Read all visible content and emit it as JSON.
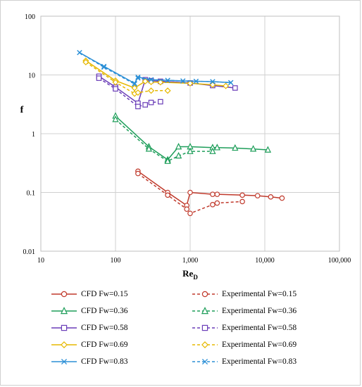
{
  "chart_data": {
    "type": "line",
    "xscale": "log",
    "yscale": "log",
    "xlabel": "Re",
    "xlabel_sub": "D",
    "ylabel": "f",
    "xlim": [
      10,
      100000
    ],
    "ylim": [
      0.01,
      100
    ],
    "x_ticks": [
      "10",
      "100",
      "1,000",
      "10,000",
      "100,000"
    ],
    "y_ticks": [
      "0.01",
      "0.1",
      "1",
      "10",
      "100"
    ],
    "grid": true,
    "legend_position": "bottom",
    "series": [
      {
        "name": "CFD Fw=0.15",
        "color": "#c0392b",
        "dash": false,
        "marker": "circle",
        "x": [
          200,
          500,
          900,
          1000,
          2000,
          2300,
          5000,
          8000,
          12000,
          17000
        ],
        "y": [
          0.23,
          0.1,
          0.06,
          0.1,
          0.093,
          0.093,
          0.09,
          0.088,
          0.084,
          0.08
        ]
      },
      {
        "name": "Experimental Fw=0.15",
        "color": "#c0392b",
        "dash": true,
        "marker": "circle",
        "x": [
          200,
          500,
          900,
          1000,
          2000,
          2300,
          5000
        ],
        "y": [
          0.21,
          0.09,
          0.052,
          0.044,
          0.062,
          0.066,
          0.07
        ]
      },
      {
        "name": "CFD Fw=0.36",
        "color": "#1e9e5a",
        "dash": false,
        "marker": "triangle",
        "x": [
          100,
          280,
          500,
          700,
          1000,
          2000,
          2300,
          4000,
          7000,
          11000
        ],
        "y": [
          2.0,
          0.6,
          0.36,
          0.6,
          0.6,
          0.58,
          0.58,
          0.57,
          0.55,
          0.53
        ]
      },
      {
        "name": "Experimental Fw=0.36",
        "color": "#1e9e5a",
        "dash": true,
        "marker": "triangle",
        "x": [
          100,
          280,
          500,
          700,
          1000,
          2000
        ],
        "y": [
          1.75,
          0.55,
          0.34,
          0.42,
          0.5,
          0.5
        ]
      },
      {
        "name": "CFD Fw=0.58",
        "color": "#6a3db8",
        "dash": false,
        "marker": "square",
        "x": [
          60,
          100,
          200,
          250,
          300,
          400,
          1000,
          2000,
          4000
        ],
        "y": [
          9.5,
          6.2,
          3.3,
          8.3,
          8.0,
          7.8,
          7.3,
          6.6,
          6.0
        ]
      },
      {
        "name": "Experimental Fw=0.58",
        "color": "#6a3db8",
        "dash": true,
        "marker": "square",
        "x": [
          60,
          100,
          200,
          250,
          300,
          400
        ],
        "y": [
          8.8,
          5.8,
          2.9,
          3.1,
          3.4,
          3.5
        ]
      },
      {
        "name": "CFD Fw=0.69",
        "color": "#e6b800",
        "dash": false,
        "marker": "diamond",
        "x": [
          40,
          100,
          180,
          250,
          300,
          400,
          1000,
          2000,
          3000
        ],
        "y": [
          17.5,
          8.0,
          6.0,
          7.8,
          7.6,
          7.5,
          7.2,
          6.8,
          6.5
        ]
      },
      {
        "name": "Experimental Fw=0.69",
        "color": "#e6b800",
        "dash": true,
        "marker": "diamond",
        "x": [
          40,
          100,
          180,
          200,
          300,
          500
        ],
        "y": [
          16.5,
          7.5,
          4.8,
          5.0,
          5.4,
          5.4
        ]
      },
      {
        "name": "CFD Fw=0.83",
        "color": "#2b8fd6",
        "dash": false,
        "marker": "x",
        "x": [
          33,
          70,
          180,
          200,
          300,
          500,
          800,
          1200,
          2000,
          3500
        ],
        "y": [
          24,
          14,
          7.2,
          9.2,
          8.3,
          8.1,
          7.9,
          7.8,
          7.7,
          7.4
        ]
      },
      {
        "name": "Experimental Fw=0.83",
        "color": "#2b8fd6",
        "dash": true,
        "marker": "x",
        "x": [
          33,
          70,
          180,
          200,
          300,
          500,
          800,
          1200,
          2000,
          3500
        ],
        "y": [
          24,
          13.5,
          7.0,
          8.8,
          8.3,
          8.1,
          7.9,
          7.8,
          7.7,
          7.4
        ]
      }
    ]
  }
}
